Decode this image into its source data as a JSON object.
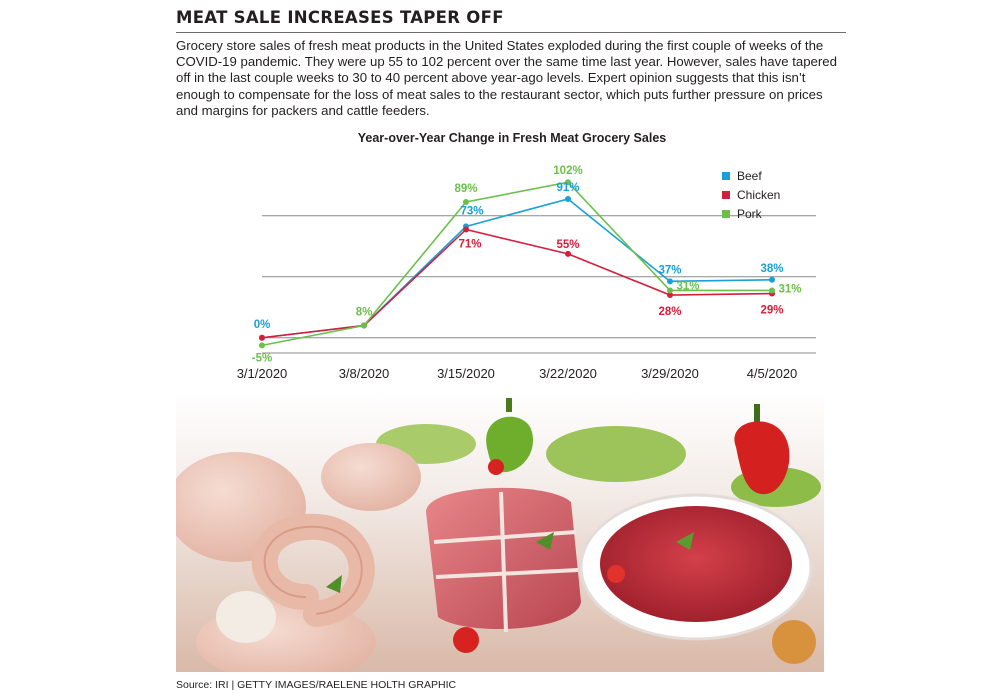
{
  "headline": "MEAT SALE INCREASES TAPER OFF",
  "intro": "Grocery store sales of fresh meat products in the United States exploded during the first couple of weeks of the COVID-19 pandemic. They were up 55 to 102 percent over the same time last year. However, sales have tapered off in the last couple weeks to 30 to 40 percent above year-ago levels. Expert opinion suggests that this isn’t enough to compensate for the loss of meat sales to the restaurant sector, which puts further pressure on prices and margins for packers and cattle feeders.",
  "source": "Source: IRI  |  GETTY IMAGES/RAELENE HOLTH GRAPHIC",
  "chart_data": {
    "type": "line",
    "title": "Year-over-Year Change in Fresh Meat Grocery Sales",
    "xlabel": "",
    "ylabel": "",
    "categories": [
      "3/1/2020",
      "3/8/2020",
      "3/15/2020",
      "3/22/2020",
      "3/29/2020",
      "4/5/2020"
    ],
    "ylim": [
      -10,
      110
    ],
    "gridlines": [
      0,
      40,
      80
    ],
    "legend_position": "top-right",
    "series": [
      {
        "name": "Beef",
        "color": "#1a9fd8",
        "values": [
          0,
          8,
          73,
          91,
          37,
          38
        ],
        "labels": [
          "0%",
          "",
          "73%",
          "91%",
          "37%",
          "38%"
        ]
      },
      {
        "name": "Chicken",
        "color": "#d31f3c",
        "values": [
          0,
          8,
          71,
          55,
          28,
          29
        ],
        "labels": [
          "",
          "",
          "71%",
          "55%",
          "28%",
          "29%"
        ]
      },
      {
        "name": "Pork",
        "color": "#6cbf4a",
        "values": [
          -5,
          8,
          89,
          102,
          31,
          31
        ],
        "labels": [
          "-5%",
          "8%",
          "89%",
          "102%",
          "31%",
          "31%"
        ]
      }
    ]
  }
}
